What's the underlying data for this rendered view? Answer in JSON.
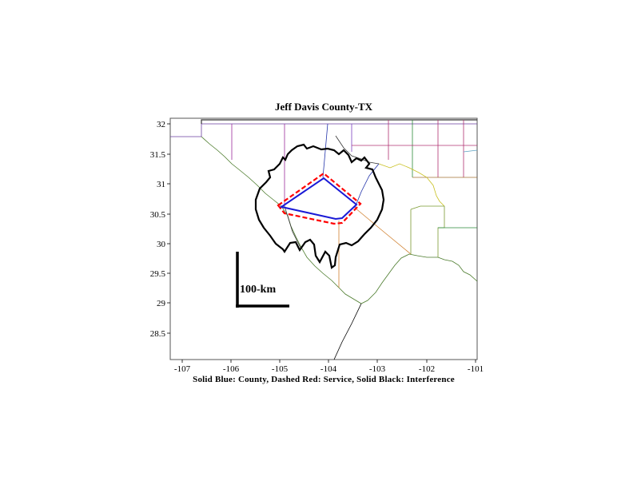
{
  "title": "Jeff Davis County-TX",
  "caption": "Solid Blue: County, Dashed Red: Service, Solid Black: Interference",
  "scale_bar_label": "100-km",
  "axes": {
    "x_range": [
      -107.3,
      -101
    ],
    "y_range": [
      28.05,
      32.1
    ],
    "x_ticks": [
      "-107",
      "-106",
      "-105",
      "-104",
      "-103",
      "-102",
      "-101"
    ],
    "y_ticks": [
      "32",
      "31.5",
      "31",
      "30.5",
      "30",
      "29.5",
      "29",
      "28.5"
    ]
  },
  "colors": {
    "county": "#1a1ad6",
    "service": "#ff0000",
    "interference": "#000000"
  }
}
